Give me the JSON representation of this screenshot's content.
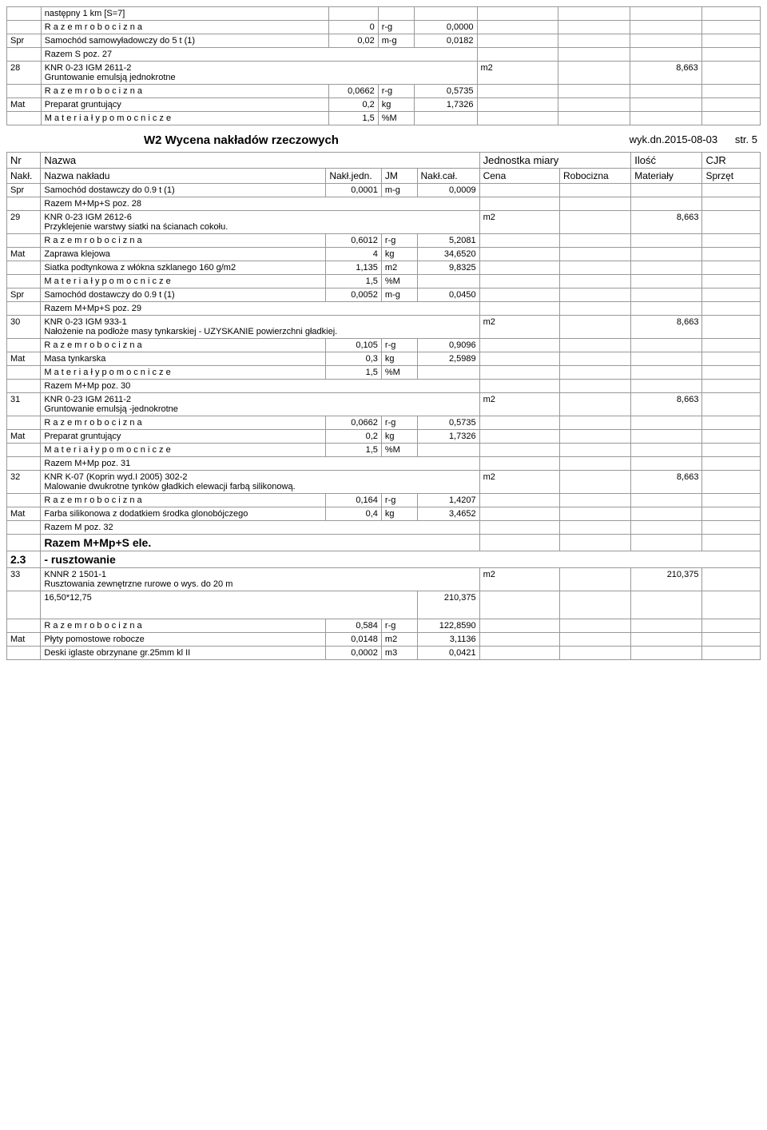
{
  "title": "W2 Wycena nakładów rzeczowych",
  "date_label": "wyk.dn.2015-08-03",
  "page_label": "str. 5",
  "top_rows": [
    {
      "c1": "",
      "c2": "następny 1 km [S=7]",
      "c3": "",
      "c4": "",
      "c5": "",
      "c6": "",
      "c7": "",
      "c8": "",
      "c9": ""
    },
    {
      "c1": "",
      "c2": "R a z e m  r o b o c i z n a",
      "c3": "0",
      "c4": "r-g",
      "c5": "0,0000",
      "c6": "",
      "c7": "",
      "c8": "",
      "c9": ""
    },
    {
      "c1": "Spr",
      "c2": "Samochód samowyładowczy do 5 t (1)",
      "c3": "0,02",
      "c4": "m-g",
      "c5": "0,0182",
      "c6": "",
      "c7": "",
      "c8": "",
      "c9": ""
    },
    {
      "c1": "",
      "c2": "Razem S poz. 27",
      "c3": "",
      "c4": "",
      "c5": "",
      "c6": "",
      "c7": "",
      "c8": "",
      "c9": "",
      "merge": true
    },
    {
      "c1": "28",
      "c2": "KNR 0-23 IGM  2611-2\nGruntowanie emulsją  jednokrotne",
      "c3": "",
      "c4": "",
      "c5": "",
      "c6": "m2",
      "c7": "",
      "c8": "8,663",
      "c9": "",
      "wide": true
    },
    {
      "c1": "",
      "c2": "R a z e m  r o b o c i z n a",
      "c3": "0,0662",
      "c4": "r-g",
      "c5": "0,5735",
      "c6": "",
      "c7": "",
      "c8": "",
      "c9": ""
    },
    {
      "c1": "Mat",
      "c2": "Preparat gruntujący",
      "c3": "0,2",
      "c4": "kg",
      "c5": "1,7326",
      "c6": "",
      "c7": "",
      "c8": "",
      "c9": ""
    },
    {
      "c1": "",
      "c2": "M a t e r i a ł y   p o m o c n i c z e",
      "c3": "1,5",
      "c4": "%M",
      "c5": "",
      "c6": "",
      "c7": "",
      "c8": "",
      "c9": ""
    }
  ],
  "hdr1": {
    "a": "Nr",
    "b": "Nazwa",
    "c": "Jednostka miary",
    "d": "Ilość",
    "e": "CJR"
  },
  "hdr2": {
    "a": "Nakł.",
    "b": "Nazwa nakładu",
    "c": "Nakł.jedn.",
    "d": "JM",
    "e": "Nakł.cał.",
    "f": "Cena",
    "g": "Robocizna",
    "h": "Materiały",
    "i": "Sprzęt"
  },
  "rows": [
    {
      "c1": "Spr",
      "c2": "Samochód dostawczy do 0.9 t (1)",
      "c3": "0,0001",
      "c4": "m-g",
      "c5": "0,0009"
    },
    {
      "c1": "",
      "c2": "Razem M+Mp+S poz. 28",
      "merge": true
    },
    {
      "c1": "29",
      "c2": "KNR 0-23 IGM  2612-6\nPrzyklejenie warstwy siatki na ścianach cokołu.",
      "c6": "m2",
      "c8": "8,663",
      "wide": true
    },
    {
      "c1": "",
      "c2": "R a z e m  r o b o c i z n a",
      "c3": "0,6012",
      "c4": "r-g",
      "c5": "5,2081"
    },
    {
      "c1": "Mat",
      "c2": "Zaprawa klejowa",
      "c3": "4",
      "c4": "kg",
      "c5": "34,6520"
    },
    {
      "c1": "",
      "c2": "Siatka podtynkowa z włókna szklanego 160 g/m2",
      "c3": "1,135",
      "c4": "m2",
      "c5": "9,8325"
    },
    {
      "c1": "",
      "c2": "M a t e r i a ł y   p o m o c n i c z e",
      "c3": "1,5",
      "c4": "%M",
      "c5": ""
    },
    {
      "c1": "Spr",
      "c2": "Samochód dostawczy do 0.9 t (1)",
      "c3": "0,0052",
      "c4": "m-g",
      "c5": "0,0450"
    },
    {
      "c1": "",
      "c2": "Razem M+Mp+S poz. 29",
      "merge": true
    },
    {
      "c1": "30",
      "c2": "KNR 0-23 IGM  933-1\nNałożenie na podłoże  masy tynkarskiej - UZYSKANIE powierzchni gładkiej.",
      "c6": "m2",
      "c8": "8,663",
      "wide": true
    },
    {
      "c1": "",
      "c2": "R a z e m  r o b o c i z n a",
      "c3": "0,105",
      "c4": "r-g",
      "c5": "0,9096"
    },
    {
      "c1": "Mat",
      "c2": "Masa tynkarska",
      "c3": "0,3",
      "c4": "kg",
      "c5": "2,5989"
    },
    {
      "c1": "",
      "c2": "M a t e r i a ł y   p o m o c n i c z e",
      "c3": "1,5",
      "c4": "%M",
      "c5": ""
    },
    {
      "c1": "",
      "c2": "Razem M+Mp poz. 30",
      "merge": true
    },
    {
      "c1": "31",
      "c2": "KNR 0-23 IGM  2611-2\nGruntowanie emulsją -jednokrotne",
      "c6": "m2",
      "c8": "8,663",
      "wide": true
    },
    {
      "c1": "",
      "c2": "R a z e m  r o b o c i z n a",
      "c3": "0,0662",
      "c4": "r-g",
      "c5": "0,5735"
    },
    {
      "c1": "Mat",
      "c2": "Preparat gruntujący",
      "c3": "0,2",
      "c4": "kg",
      "c5": "1,7326"
    },
    {
      "c1": "",
      "c2": "M a t e r i a ł y   p o m o c n i c z e",
      "c3": "1,5",
      "c4": "%M",
      "c5": ""
    },
    {
      "c1": "",
      "c2": "Razem M+Mp poz. 31",
      "merge": true
    },
    {
      "c1": "32",
      "c2": "KNR K-07 (Koprin wyd.I 2005) 302-2\nMalowanie dwukrotne tynków gładkich elewacji farbą silikonową.",
      "c6": "m2",
      "c8": "8,663",
      "wide": true
    },
    {
      "c1": "",
      "c2": "R a z e m  r o b o c i z n a",
      "c3": "0,164",
      "c4": "r-g",
      "c5": "1,4207"
    },
    {
      "c1": "Mat",
      "c2": "Farba silikonowa z dodatkiem środka glonobójczego",
      "c3": "0,4",
      "c4": "kg",
      "c5": "3,4652"
    },
    {
      "c1": "",
      "c2": "Razem M poz. 32",
      "merge": true
    },
    {
      "c1": "",
      "c2": "Razem M+Mp+S ele.",
      "merge": true,
      "bold": true,
      "big": true
    },
    {
      "c1": "2.3",
      "c2": "- rusztowanie",
      "merge": true,
      "bold": true,
      "big": true,
      "full": true
    },
    {
      "c1": "33",
      "c2": "KNNR 2  1501-1\nRusztowania zewnętrzne rurowe o wys. do 20 m",
      "c6": "m2",
      "c8": "210,375",
      "wide": true
    },
    {
      "c1": "",
      "c2": "16,50*12,75",
      "c5": "210,375",
      "calc": true
    },
    {
      "c1": "",
      "c2": "R a z e m  r o b o c i z n a",
      "c3": "0,584",
      "c4": "r-g",
      "c5": "122,8590"
    },
    {
      "c1": "Mat",
      "c2": "Płyty pomostowe robocze",
      "c3": "0,0148",
      "c4": "m2",
      "c5": "3,1136"
    },
    {
      "c1": "",
      "c2": "Deski iglaste obrzynane gr.25mm kl II",
      "c3": "0,0002",
      "c4": "m3",
      "c5": "0,0421"
    }
  ]
}
